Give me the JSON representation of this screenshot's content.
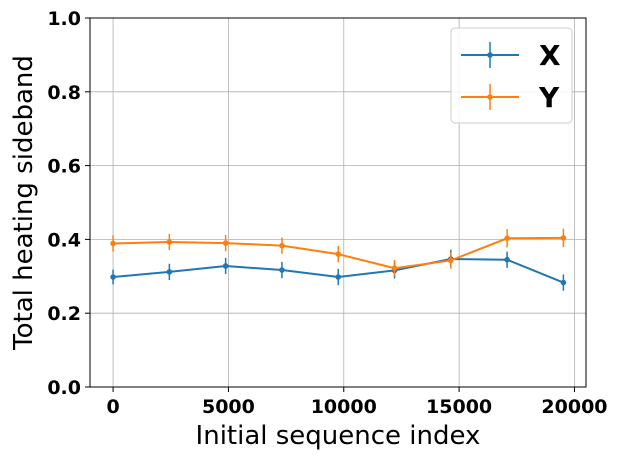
{
  "chart_data": {
    "type": "line",
    "xlabel": "Initial sequence index",
    "ylabel": "Total heating sideband",
    "xlim": [
      -1000,
      20500
    ],
    "ylim": [
      0.0,
      1.0
    ],
    "xticks": [
      0,
      5000,
      10000,
      15000,
      20000
    ],
    "yticks": [
      0.0,
      0.2,
      0.4,
      0.6,
      0.8,
      1.0
    ],
    "xtick_labels": [
      "0",
      "5000",
      "10000",
      "15000",
      "20000"
    ],
    "ytick_labels": [
      "0.0",
      "0.2",
      "0.4",
      "0.6",
      "0.8",
      "1.0"
    ],
    "grid": true,
    "legend_position": "top-right",
    "x": [
      0,
      2440,
      4880,
      7320,
      9760,
      12200,
      14640,
      17080,
      19520
    ],
    "series": [
      {
        "name": "X",
        "color": "#1f77b4",
        "values": [
          0.298,
          0.312,
          0.328,
          0.317,
          0.298,
          0.316,
          0.347,
          0.345,
          0.283
        ],
        "errors": [
          0.02,
          0.022,
          0.022,
          0.022,
          0.022,
          0.022,
          0.025,
          0.022,
          0.022
        ]
      },
      {
        "name": "Y",
        "color": "#ff7f0e",
        "values": [
          0.389,
          0.393,
          0.39,
          0.383,
          0.36,
          0.322,
          0.343,
          0.403,
          0.404
        ],
        "errors": [
          0.022,
          0.022,
          0.022,
          0.022,
          0.022,
          0.022,
          0.022,
          0.025,
          0.025
        ]
      }
    ]
  }
}
